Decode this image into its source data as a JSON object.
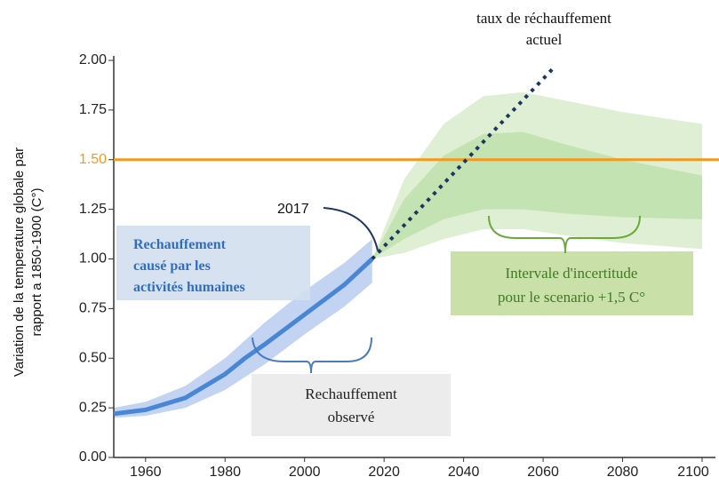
{
  "chart_data": {
    "type": "line",
    "ylabel": [
      "Variation de la temperature globale par",
      "rapport a 1850-1900 (C°)"
    ],
    "xlim": [
      1952,
      2100
    ],
    "ylim": [
      0,
      2
    ],
    "xticks": [
      1960,
      1980,
      2000,
      2020,
      2040,
      2060,
      2080,
      2100
    ],
    "yticks": [
      {
        "value": 0,
        "label": "0.00"
      },
      {
        "value": 0.25,
        "label": "0.25"
      },
      {
        "value": 0.5,
        "label": "0.50"
      },
      {
        "value": 0.75,
        "label": "0.75"
      },
      {
        "value": 1,
        "label": "1.00"
      },
      {
        "value": 1.25,
        "label": "1.25"
      },
      {
        "value": 1.5,
        "label": "1.50"
      },
      {
        "value": 1.75,
        "label": "1.75"
      },
      {
        "value": 2,
        "label": "2.00"
      }
    ],
    "highlight_tick": 6,
    "hline": {
      "value": 1.5,
      "color": "#f39a1e"
    },
    "bands": [
      {
        "color": "#d8eccb",
        "x": [
          2017,
          2025,
          2035,
          2045,
          2055,
          2065,
          2080,
          2100
        ],
        "lower": [
          1.0,
          1.03,
          1.1,
          1.15,
          1.15,
          1.12,
          1.08,
          1.05
        ],
        "upper": [
          1.0,
          1.4,
          1.68,
          1.82,
          1.84,
          1.8,
          1.74,
          1.68
        ]
      },
      {
        "color": "#bfe0ac",
        "x": [
          2017,
          2025,
          2035,
          2045,
          2055,
          2065,
          2080,
          2100
        ],
        "lower": [
          1.0,
          1.1,
          1.2,
          1.25,
          1.25,
          1.23,
          1.21,
          1.2
        ],
        "upper": [
          1.0,
          1.3,
          1.52,
          1.63,
          1.64,
          1.58,
          1.5,
          1.42
        ]
      },
      {
        "color": "#b7ccee",
        "x": [
          1952,
          1960,
          1970,
          1980,
          1990,
          2000,
          2010,
          2017
        ],
        "lower": [
          0.2,
          0.21,
          0.25,
          0.34,
          0.47,
          0.62,
          0.76,
          0.88
        ],
        "upper": [
          0.25,
          0.28,
          0.36,
          0.5,
          0.68,
          0.84,
          0.98,
          1.1
        ]
      }
    ],
    "series": [
      {
        "color": "#4a86d6",
        "style": "solid",
        "x": [
          1952,
          1960,
          1970,
          1980,
          1985,
          1990,
          2000,
          2010,
          2017
        ],
        "values": [
          0.22,
          0.24,
          0.3,
          0.42,
          0.5,
          0.57,
          0.72,
          0.87,
          1.0
        ]
      },
      {
        "color": "#1d3560",
        "style": "dotted",
        "x": [
          2017,
          2063
        ],
        "values": [
          1.0,
          1.97
        ]
      }
    ],
    "annotations": {
      "rate": [
        "taux de réchauffement",
        "actuel"
      ],
      "year": "2017",
      "human": [
        "Rechauffement",
        "causé par les",
        "activités humaines"
      ],
      "uncertainty": [
        "Intervale d'incertitude",
        "pour le scenario +1,5 C°"
      ],
      "observed": [
        "Rechauffement",
        "observé"
      ]
    }
  }
}
